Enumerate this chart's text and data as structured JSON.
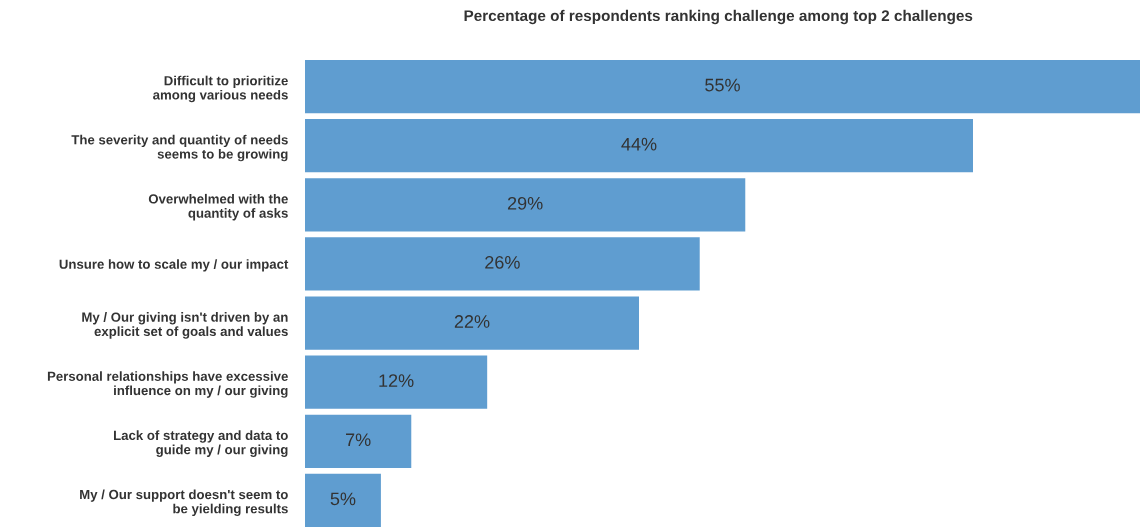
{
  "chart_data": {
    "type": "bar",
    "orientation": "horizontal",
    "title": "Percentage of respondents ranking challenge among top 2 challenges",
    "categories": [
      "Difficult to prioritize\namong various needs",
      "The severity and quantity of needs\nseems to be growing",
      "Overwhelmed with the\nquantity of asks",
      "Unsure how to scale my / our impact",
      "My / Our giving isn't driven by an\nexplicit set of goals and values",
      "Personal relationships have excessive\ninfluence on my / our giving",
      "Lack of strategy and data to\nguide my / our giving",
      "My / Our support doesn't seem to\nbe yielding results"
    ],
    "values": [
      55,
      44,
      29,
      26,
      22,
      12,
      7,
      5
    ],
    "value_labels": [
      "55%",
      "44%",
      "29%",
      "26%",
      "22%",
      "12%",
      "7%",
      "5%"
    ],
    "color": "#5f9dd0",
    "grid": false,
    "legend": false
  }
}
